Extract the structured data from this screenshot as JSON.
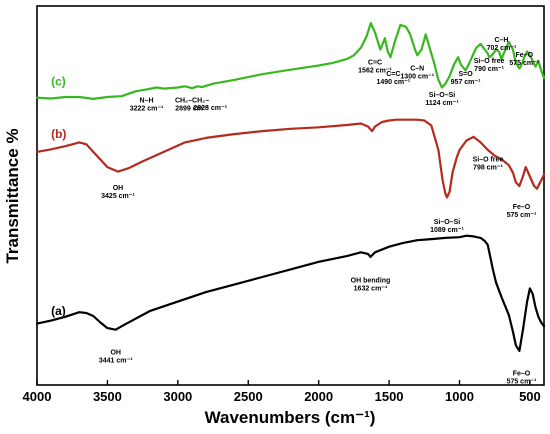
{
  "chart_data": {
    "type": "line",
    "title": "",
    "xlabel": "Wavenumbers (cm⁻¹)",
    "ylabel": "Transmittance %",
    "xlim": [
      4000,
      400
    ],
    "x_reversed": true,
    "ylim": [
      0,
      100
    ],
    "y_ticks_shown": false,
    "x_ticks": [
      4000,
      3500,
      3000,
      2500,
      2000,
      1500,
      1000,
      500
    ],
    "x_tick_labels": [
      "4000",
      "3500",
      "3000",
      "2500",
      "2000",
      "1500",
      "1000",
      "500"
    ],
    "grid": false,
    "legend": "none",
    "series": [
      {
        "name": "(a)",
        "color": "#000000",
        "x": [
          4000,
          3900,
          3800,
          3700,
          3650,
          3600,
          3550,
          3500,
          3441,
          3400,
          3300,
          3200,
          3000,
          2800,
          2600,
          2400,
          2200,
          2000,
          1800,
          1700,
          1650,
          1632,
          1600,
          1500,
          1400,
          1300,
          1200,
          1100,
          1000,
          950,
          900,
          850,
          820,
          800,
          780,
          760,
          740,
          700,
          650,
          620,
          600,
          575,
          550,
          520,
          500,
          480,
          460,
          440,
          420,
          400
        ],
        "y": [
          16.2,
          17.0,
          18.0,
          19.2,
          19.0,
          18.2,
          16.5,
          15.0,
          14.6,
          15.5,
          17.5,
          19.5,
          22.0,
          24.5,
          26.5,
          28.5,
          30.5,
          32.5,
          34.0,
          35.0,
          34.6,
          33.8,
          35.0,
          36.5,
          37.5,
          38.2,
          38.5,
          38.8,
          39.0,
          39.4,
          39.2,
          38.8,
          38.0,
          37.0,
          33.5,
          30.0,
          27.0,
          23.0,
          18.5,
          14.0,
          10.5,
          9.0,
          14.5,
          22.0,
          25.5,
          24.0,
          20.5,
          18.0,
          16.5,
          15.5
        ]
      },
      {
        "name": "(b)",
        "color": "#b52a1e",
        "x": [
          4000,
          3900,
          3800,
          3700,
          3650,
          3600,
          3500,
          3425,
          3350,
          3250,
          3100,
          2950,
          2800,
          2600,
          2400,
          2200,
          2000,
          1800,
          1700,
          1650,
          1620,
          1600,
          1550,
          1500,
          1450,
          1400,
          1350,
          1300,
          1250,
          1200,
          1150,
          1120,
          1100,
          1089,
          1070,
          1050,
          1020,
          1000,
          950,
          900,
          850,
          798,
          750,
          700,
          650,
          620,
          600,
          575,
          550,
          530,
          500,
          470,
          450,
          420,
          400
        ],
        "y": [
          61.5,
          62.2,
          63.0,
          64.0,
          63.5,
          61.5,
          57.5,
          56.3,
          57.2,
          59.0,
          61.5,
          64.0,
          65.2,
          66.2,
          67.0,
          67.6,
          68.0,
          68.6,
          69.0,
          68.2,
          67.0,
          68.2,
          69.4,
          69.8,
          70.0,
          70.0,
          70.0,
          70.0,
          69.8,
          68.5,
          62.0,
          54.0,
          50.5,
          49.5,
          51.0,
          56.0,
          60.0,
          62.0,
          64.5,
          65.5,
          64.0,
          62.0,
          60.5,
          59.5,
          58.0,
          56.0,
          53.5,
          52.5,
          55.0,
          57.5,
          55.0,
          52.5,
          51.8,
          54.0,
          55.5
        ]
      },
      {
        "name": "(c)",
        "color": "#39b71f",
        "x": [
          4000,
          3900,
          3800,
          3700,
          3600,
          3500,
          3400,
          3300,
          3222,
          3150,
          3100,
          3000,
          2950,
          2899,
          2860,
          2828,
          2750,
          2600,
          2400,
          2200,
          2000,
          1900,
          1800,
          1750,
          1700,
          1660,
          1630,
          1600,
          1562,
          1530,
          1510,
          1490,
          1460,
          1420,
          1380,
          1350,
          1320,
          1300,
          1270,
          1240,
          1220,
          1200,
          1180,
          1150,
          1124,
          1100,
          1070,
          1040,
          1010,
          990,
          957,
          930,
          900,
          880,
          850,
          820,
          800,
          790,
          770,
          740,
          720,
          702,
          680,
          650,
          620,
          600,
          575,
          560,
          540,
          520,
          500,
          480,
          460,
          440,
          420,
          400
        ],
        "y": [
          75.8,
          75.6,
          76.0,
          76.0,
          75.5,
          76.0,
          76.2,
          77.5,
          78.0,
          78.5,
          78.2,
          78.5,
          78.8,
          78.3,
          78.8,
          78.6,
          79.5,
          80.5,
          82.0,
          83.2,
          84.3,
          85.0,
          86.0,
          87.0,
          89.0,
          92.0,
          95.5,
          93.0,
          88.5,
          91.5,
          88.0,
          86.5,
          90.5,
          95.0,
          94.5,
          92.5,
          89.0,
          87.0,
          88.5,
          92.5,
          90.0,
          87.5,
          85.0,
          80.5,
          78.5,
          79.5,
          81.5,
          84.5,
          86.5,
          84.5,
          83.0,
          85.0,
          87.5,
          89.0,
          90.0,
          88.5,
          87.5,
          86.5,
          87.0,
          88.5,
          88.0,
          86.0,
          88.0,
          90.5,
          88.5,
          85.0,
          83.5,
          84.5,
          86.5,
          88.0,
          87.0,
          85.5,
          84.0,
          85.5,
          83.0,
          81.0
        ]
      }
    ],
    "series_labels": [
      "(a)",
      "(b)",
      "(c)"
    ],
    "annotations": [
      {
        "lines": [
          "OH",
          "3441 cm⁻¹"
        ],
        "x": 3441,
        "y": 8.0
      },
      {
        "lines": [
          "OH bending",
          "1632 cm⁻¹"
        ],
        "x": 1632,
        "y": 27.0
      },
      {
        "lines": [
          "Fe–O",
          "575 cm⁻¹"
        ],
        "x": 560,
        "y": 2.5
      },
      {
        "lines": [
          "OH",
          "3425 cm⁻¹"
        ],
        "x": 3425,
        "y": 51.5
      },
      {
        "lines": [
          "Si–O–Si",
          "1089 cm⁻¹"
        ],
        "x": 1089,
        "y": 42.5
      },
      {
        "lines": [
          "Si–O free",
          "798 cm⁻¹"
        ],
        "x": 798,
        "y": 59.0
      },
      {
        "lines": [
          "Fe–O",
          "575 cm⁻¹"
        ],
        "x": 560,
        "y": 46.5
      },
      {
        "lines": [
          "N–H",
          "3222 cm⁻¹"
        ],
        "x": 3222,
        "y": 74.5
      },
      {
        "lines": [
          "CH₂–CH₂–",
          "2899 cm⁻¹"
        ],
        "x": 2899,
        "y": 74.5
      },
      {
        "lines": [
          "2828 cm⁻¹"
        ],
        "x": 2770,
        "y": 72.5
      },
      {
        "lines": [
          "C=C",
          "1562 cm⁻¹"
        ],
        "x": 1600,
        "y": 84.5
      },
      {
        "lines": [
          "C=C",
          "1490 cm⁻¹"
        ],
        "x": 1470,
        "y": 81.5
      },
      {
        "lines": [
          "C–N",
          "1300 cm⁻¹"
        ],
        "x": 1300,
        "y": 83.0
      },
      {
        "lines": [
          "Si–O–Si",
          "1124 cm⁻¹"
        ],
        "x": 1124,
        "y": 76.0
      },
      {
        "lines": [
          "S=O",
          "957 cm⁻¹"
        ],
        "x": 957,
        "y": 81.5
      },
      {
        "lines": [
          "Si–O free",
          "790 cm⁻¹"
        ],
        "x": 790,
        "y": 85.0
      },
      {
        "lines": [
          "C–H",
          "702 cm⁻¹"
        ],
        "x": 702,
        "y": 90.5
      },
      {
        "lines": [
          "Fe–O",
          "575 cm⁻¹"
        ],
        "x": 540,
        "y": 86.5
      }
    ]
  }
}
